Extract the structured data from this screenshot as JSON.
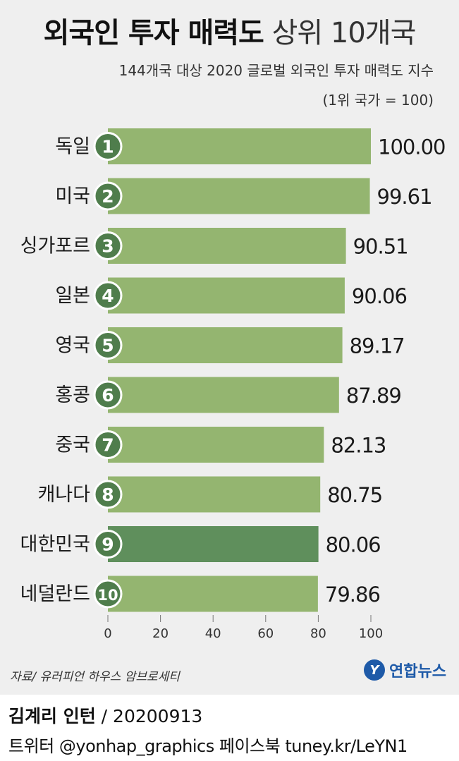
{
  "header": {
    "title_bold": "외국인 투자 매력도",
    "title_light": "상위 10개국",
    "subtitle": "144개국 대상 2020 글로벌 외국인 투자 매력도 지수",
    "note": "(1위 국가 = 100)"
  },
  "colors": {
    "bar": "#94b570",
    "bar_highlight": "#5f8f5c",
    "rank_badge": "#4f7d4c",
    "rank_badge_border": "#ffffff"
  },
  "chart_data": {
    "type": "bar",
    "orientation": "horizontal",
    "categories": [
      "독일",
      "미국",
      "싱가포르",
      "일본",
      "영국",
      "홍콩",
      "중국",
      "캐나다",
      "대한민국",
      "네덜란드"
    ],
    "ranks": [
      "1",
      "2",
      "3",
      "4",
      "5",
      "6",
      "7",
      "8",
      "9",
      "10"
    ],
    "values": [
      100.0,
      99.61,
      90.51,
      90.06,
      89.17,
      87.89,
      82.13,
      80.75,
      80.06,
      79.86
    ],
    "value_labels": [
      "100.00",
      "99.61",
      "90.51",
      "90.06",
      "89.17",
      "87.89",
      "82.13",
      "80.75",
      "80.06",
      "79.86"
    ],
    "highlight": "대한민국",
    "xlim": [
      0,
      100
    ],
    "xticks": [
      "0",
      "20",
      "40",
      "60",
      "80",
      "100"
    ],
    "grid": false
  },
  "footer": {
    "source": "자료/ 유러피언 하우스 암브로세티",
    "logo_text": "연합뉴스",
    "credit_name": "김계리 인턴",
    "credit_date": "/ 20200913",
    "social": "트위터 @yonhap_graphics  페이스북 tuney.kr/LeYN1"
  }
}
